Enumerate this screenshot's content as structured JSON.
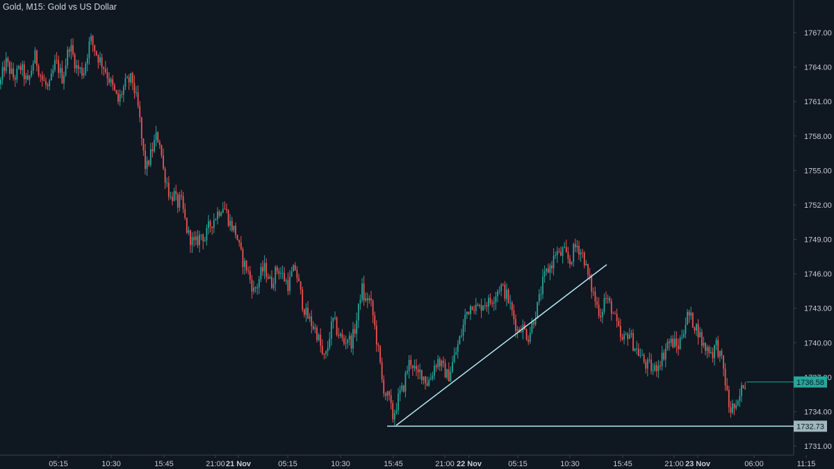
{
  "chart_data": {
    "type": "candlestick",
    "title": "Gold, M15: Gold vs US Dollar",
    "timeframe": "M15",
    "colors": {
      "background": "#0f1721",
      "up_candle": "#26a69a",
      "down_candle": "#ef5350",
      "trendline": "#b2ebf2",
      "support_line": "#b2ebf2",
      "last_price_tag": "#26a69a",
      "support_price_tag": "#9fb8bd",
      "axis_text": "#c8ccd4"
    },
    "y_axis": {
      "min": 1730,
      "max": 1768.5,
      "ticks": [
        "1731.00",
        "1734.00",
        "1737.00",
        "1740.00",
        "1743.00",
        "1746.00",
        "1749.00",
        "1752.00",
        "1755.00",
        "1758.00",
        "1761.00",
        "1764.00",
        "1767.00"
      ],
      "position": "right"
    },
    "x_axis": {
      "ticks": [
        "05:15",
        "10:30",
        "15:45",
        "21:00",
        "21 Nov",
        "05:15",
        "10:30",
        "15:45",
        "21:00",
        "22 Nov",
        "05:15",
        "10:30",
        "15:45",
        "21:00",
        "23 Nov",
        "06:00",
        "11:15"
      ],
      "bold_ticks": [
        "21 Nov",
        "22 Nov",
        "23 Nov"
      ]
    },
    "price_path": [
      [
        0,
        1762.5
      ],
      [
        8,
        1764.5
      ],
      [
        20,
        1763
      ],
      [
        30,
        1764
      ],
      [
        40,
        1762.5
      ],
      [
        50,
        1765
      ],
      [
        60,
        1763
      ],
      [
        70,
        1762
      ],
      [
        80,
        1764.5
      ],
      [
        90,
        1763
      ],
      [
        100,
        1766
      ],
      [
        110,
        1764
      ],
      [
        120,
        1763.5
      ],
      [
        130,
        1766.5
      ],
      [
        140,
        1765
      ],
      [
        150,
        1764
      ],
      [
        160,
        1762.5
      ],
      [
        170,
        1761
      ],
      [
        180,
        1762.5
      ],
      [
        190,
        1763
      ],
      [
        200,
        1760
      ],
      [
        205,
        1757
      ],
      [
        210,
        1755
      ],
      [
        215,
        1756
      ],
      [
        220,
        1757
      ],
      [
        225,
        1758
      ],
      [
        230,
        1757.5
      ],
      [
        235,
        1755
      ],
      [
        240,
        1754
      ],
      [
        245,
        1752.5
      ],
      [
        250,
        1753
      ],
      [
        255,
        1752
      ],
      [
        260,
        1752.5
      ],
      [
        265,
        1751
      ],
      [
        270,
        1749.5
      ],
      [
        275,
        1749
      ],
      [
        280,
        1748.5
      ],
      [
        285,
        1749
      ],
      [
        290,
        1749.5
      ],
      [
        295,
        1749
      ],
      [
        300,
        1750
      ],
      [
        305,
        1750.5
      ],
      [
        310,
        1751
      ],
      [
        315,
        1751.5
      ],
      [
        320,
        1752
      ],
      [
        325,
        1751.5
      ],
      [
        330,
        1750.5
      ],
      [
        335,
        1750
      ],
      [
        340,
        1749.5
      ],
      [
        345,
        1748
      ],
      [
        350,
        1747
      ],
      [
        355,
        1746.5
      ],
      [
        360,
        1745.5
      ],
      [
        365,
        1744.5
      ],
      [
        370,
        1745
      ],
      [
        375,
        1746
      ],
      [
        380,
        1746.5
      ],
      [
        385,
        1746
      ],
      [
        390,
        1745
      ],
      [
        395,
        1746
      ],
      [
        400,
        1746.5
      ],
      [
        405,
        1746
      ],
      [
        410,
        1745.5
      ],
      [
        415,
        1745
      ],
      [
        420,
        1746
      ],
      [
        425,
        1746.5
      ],
      [
        430,
        1745
      ],
      [
        435,
        1743.5
      ],
      [
        440,
        1742.5
      ],
      [
        445,
        1742
      ],
      [
        450,
        1741.5
      ],
      [
        455,
        1741
      ],
      [
        460,
        1740
      ],
      [
        465,
        1738.5
      ],
      [
        470,
        1739
      ],
      [
        475,
        1741
      ],
      [
        480,
        1742
      ],
      [
        485,
        1741
      ],
      [
        490,
        1740.5
      ],
      [
        495,
        1740
      ],
      [
        500,
        1740.5
      ],
      [
        505,
        1740
      ],
      [
        510,
        1741
      ],
      [
        515,
        1742.5
      ],
      [
        520,
        1745
      ],
      [
        525,
        1743.5
      ],
      [
        530,
        1744
      ],
      [
        535,
        1743
      ],
      [
        540,
        1741
      ],
      [
        545,
        1739
      ],
      [
        550,
        1736.5
      ],
      [
        555,
        1735.5
      ],
      [
        560,
        1735
      ],
      [
        565,
        1733.5
      ],
      [
        570,
        1734.5
      ],
      [
        575,
        1735.5
      ],
      [
        580,
        1736
      ],
      [
        585,
        1737.5
      ],
      [
        590,
        1738.5
      ],
      [
        595,
        1738
      ],
      [
        600,
        1737
      ],
      [
        605,
        1737.5
      ],
      [
        610,
        1737
      ],
      [
        615,
        1736.5
      ],
      [
        620,
        1737
      ],
      [
        625,
        1738
      ],
      [
        630,
        1738.5
      ],
      [
        635,
        1738
      ],
      [
        640,
        1737.5
      ],
      [
        645,
        1737
      ],
      [
        650,
        1738
      ],
      [
        655,
        1739
      ],
      [
        660,
        1740
      ],
      [
        665,
        1741
      ],
      [
        670,
        1742.5
      ],
      [
        675,
        1743
      ],
      [
        680,
        1743.5
      ],
      [
        685,
        1743
      ],
      [
        690,
        1743
      ],
      [
        695,
        1743.5
      ],
      [
        700,
        1743.5
      ],
      [
        705,
        1743.5
      ],
      [
        710,
        1744
      ],
      [
        715,
        1744.5
      ],
      [
        720,
        1745
      ],
      [
        725,
        1744.5
      ],
      [
        730,
        1744
      ],
      [
        735,
        1743
      ],
      [
        740,
        1742
      ],
      [
        745,
        1741
      ],
      [
        750,
        1741.5
      ],
      [
        755,
        1741
      ],
      [
        760,
        1740.5
      ],
      [
        765,
        1741.5
      ],
      [
        770,
        1742.5
      ],
      [
        775,
        1743.5
      ],
      [
        780,
        1745
      ],
      [
        785,
        1746
      ],
      [
        790,
        1746.5
      ],
      [
        795,
        1747
      ],
      [
        800,
        1748
      ],
      [
        805,
        1747.5
      ],
      [
        810,
        1748
      ],
      [
        815,
        1747.5
      ],
      [
        820,
        1747
      ],
      [
        825,
        1748
      ],
      [
        830,
        1748.5
      ],
      [
        835,
        1748
      ],
      [
        840,
        1747.5
      ],
      [
        845,
        1746
      ],
      [
        850,
        1745
      ],
      [
        855,
        1744
      ],
      [
        860,
        1743
      ],
      [
        865,
        1742.5
      ],
      [
        870,
        1744
      ],
      [
        875,
        1743.5
      ],
      [
        880,
        1743
      ],
      [
        885,
        1742
      ],
      [
        890,
        1741
      ],
      [
        895,
        1740
      ],
      [
        900,
        1740.5
      ],
      [
        905,
        1741
      ],
      [
        910,
        1740
      ],
      [
        915,
        1739.5
      ],
      [
        920,
        1739
      ],
      [
        925,
        1738.5
      ],
      [
        930,
        1738
      ],
      [
        935,
        1738
      ],
      [
        940,
        1737.5
      ],
      [
        945,
        1738
      ],
      [
        950,
        1738.5
      ],
      [
        955,
        1739
      ],
      [
        960,
        1740
      ],
      [
        965,
        1740
      ],
      [
        970,
        1740
      ],
      [
        975,
        1739.5
      ],
      [
        980,
        1740.5
      ],
      [
        985,
        1741.5
      ],
      [
        990,
        1742.5
      ],
      [
        995,
        1742
      ],
      [
        1000,
        1741.5
      ],
      [
        1005,
        1741
      ],
      [
        1010,
        1740
      ],
      [
        1015,
        1739.5
      ],
      [
        1020,
        1739.5
      ],
      [
        1025,
        1739
      ],
      [
        1030,
        1740
      ],
      [
        1035,
        1739
      ],
      [
        1040,
        1738
      ],
      [
        1045,
        1736
      ],
      [
        1050,
        1734
      ],
      [
        1055,
        1734.5
      ],
      [
        1060,
        1734
      ],
      [
        1065,
        1735.5
      ],
      [
        1070,
        1736.5
      ],
      [
        1074,
        1736.6
      ]
    ],
    "last_price": "1736.58",
    "support_level": "1732.73",
    "support_value": 1732.73,
    "trendline": {
      "start": [
        570,
        1732.8
      ],
      "end": [
        873,
        1746.8
      ]
    },
    "support_line_start": 557
  }
}
